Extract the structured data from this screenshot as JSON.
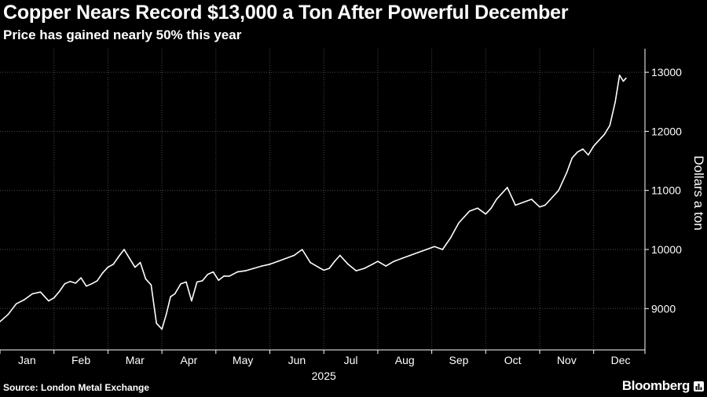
{
  "header": {
    "title": "Copper Nears Record $13,000 a Ton After Powerful December",
    "subtitle": "Price has gained nearly 50% this year"
  },
  "footer": {
    "source": "Source: London Metal Exchange",
    "brand": "Bloomberg"
  },
  "icons": {
    "brand": "bar-chart-icon"
  },
  "colors": {
    "background": "#000000",
    "line": "#ffffff",
    "grid": "#4a4a4a",
    "text": "#ffffff"
  },
  "chart_data": {
    "type": "line",
    "title": "Copper Nears Record $13,000 a Ton After Powerful December",
    "subtitle": "Price has gained nearly 50% this year",
    "xlabel": "2025",
    "ylabel": "Dollars a ton",
    "ylim": [
      8300,
      13400
    ],
    "xlim": [
      0,
      11.95
    ],
    "yticks": [
      9000,
      10000,
      11000,
      12000,
      13000
    ],
    "ytick_labels": [
      "9000",
      "10000",
      "11000",
      "12000",
      "13000"
    ],
    "xtick_labels": [
      "Jan",
      "Feb",
      "Mar",
      "Apr",
      "May",
      "Jun",
      "Jul",
      "Aug",
      "Sep",
      "Oct",
      "Nov",
      "Dec"
    ],
    "year_label": "2025",
    "grid": true,
    "x_units": "months elapsed in 2025 (0 = Jan 1)",
    "series": [
      {
        "name": "",
        "color": "#ffffff",
        "x": [
          0.0,
          0.15,
          0.3,
          0.45,
          0.6,
          0.75,
          0.9,
          1.0,
          1.1,
          1.2,
          1.3,
          1.4,
          1.5,
          1.6,
          1.7,
          1.8,
          1.9,
          2.0,
          2.1,
          2.2,
          2.3,
          2.4,
          2.5,
          2.6,
          2.7,
          2.8,
          2.9,
          3.0,
          3.08,
          3.16,
          3.24,
          3.35,
          3.45,
          3.55,
          3.65,
          3.75,
          3.85,
          3.95,
          4.05,
          4.15,
          4.25,
          4.4,
          4.55,
          4.7,
          4.85,
          5.0,
          5.15,
          5.3,
          5.45,
          5.6,
          5.75,
          5.9,
          6.0,
          6.1,
          6.2,
          6.3,
          6.45,
          6.6,
          6.75,
          6.9,
          7.0,
          7.15,
          7.3,
          7.45,
          7.6,
          7.75,
          7.9,
          8.05,
          8.2,
          8.35,
          8.5,
          8.6,
          8.7,
          8.85,
          9.0,
          9.1,
          9.2,
          9.3,
          9.4,
          9.55,
          9.7,
          9.85,
          10.0,
          10.1,
          10.2,
          10.35,
          10.5,
          10.6,
          10.7,
          10.8,
          10.9,
          11.0,
          11.1,
          11.2,
          11.3,
          11.4,
          11.48,
          11.55,
          11.6
        ],
        "values": [
          8780,
          8900,
          9080,
          9150,
          9250,
          9280,
          9130,
          9180,
          9290,
          9420,
          9460,
          9430,
          9520,
          9380,
          9420,
          9470,
          9600,
          9700,
          9750,
          9880,
          10000,
          9850,
          9700,
          9780,
          9500,
          9400,
          8750,
          8650,
          8900,
          9200,
          9250,
          9420,
          9450,
          9130,
          9450,
          9470,
          9580,
          9620,
          9480,
          9550,
          9550,
          9620,
          9640,
          9680,
          9720,
          9750,
          9800,
          9850,
          9900,
          10000,
          9780,
          9700,
          9650,
          9680,
          9800,
          9900,
          9750,
          9640,
          9680,
          9750,
          9800,
          9720,
          9800,
          9850,
          9900,
          9950,
          10000,
          10050,
          10000,
          10200,
          10450,
          10550,
          10650,
          10700,
          10600,
          10700,
          10850,
          10950,
          11050,
          10750,
          10800,
          10850,
          10720,
          10750,
          10850,
          11000,
          11300,
          11550,
          11650,
          11700,
          11600,
          11750,
          11850,
          11950,
          12100,
          12500,
          12950,
          12850,
          12900
        ]
      }
    ],
    "annotations": []
  }
}
